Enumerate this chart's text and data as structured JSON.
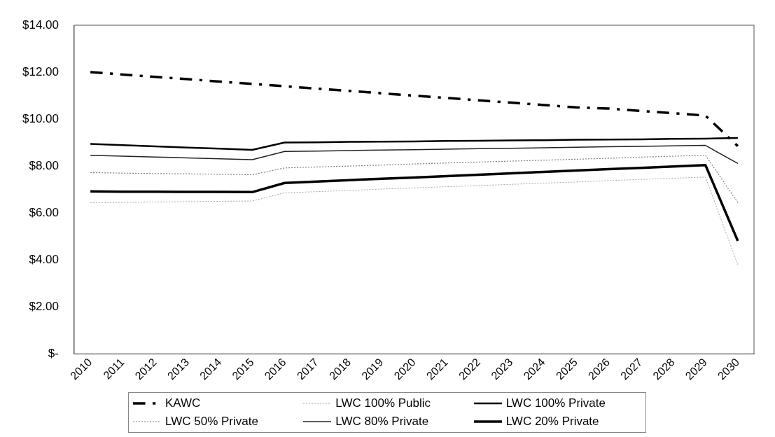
{
  "chart_data": {
    "type": "line",
    "categories": [
      "2010",
      "2011",
      "2012",
      "2013",
      "2014",
      "2015",
      "2016",
      "2017",
      "2018",
      "2019",
      "2020",
      "2021",
      "2022",
      "2023",
      "2024",
      "2025",
      "2026",
      "2027",
      "2028",
      "2029",
      "2030"
    ],
    "ylim": [
      0,
      14
    ],
    "yticks": [
      {
        "value": 0,
        "label": "$-"
      },
      {
        "value": 2,
        "label": "$2.00"
      },
      {
        "value": 4,
        "label": "$4.00"
      },
      {
        "value": 6,
        "label": "$6.00"
      },
      {
        "value": 8,
        "label": "$8.00"
      },
      {
        "value": 10,
        "label": "$10.00"
      },
      {
        "value": 12,
        "label": "$12.00"
      },
      {
        "value": 14,
        "label": "$14.00"
      }
    ],
    "grid": false,
    "legend": "bottom",
    "marker": "none",
    "series": [
      {
        "name": "KAWC",
        "color": "#000000",
        "line_style": "dashed",
        "values": [
          12.0,
          11.9,
          11.8,
          11.7,
          11.6,
          11.5,
          11.4,
          11.3,
          11.2,
          11.1,
          11.0,
          10.9,
          10.8,
          10.7,
          10.6,
          10.5,
          10.45,
          10.35,
          10.25,
          10.15,
          8.85
        ]
      },
      {
        "name": "LWC 100% Public",
        "color": "#a6a6a6",
        "line_style": "dotted",
        "values": [
          6.44,
          6.45,
          6.47,
          6.48,
          6.5,
          6.51,
          6.86,
          6.91,
          6.96,
          7.02,
          7.07,
          7.12,
          7.17,
          7.22,
          7.27,
          7.32,
          7.38,
          7.43,
          7.48,
          7.53,
          3.8
        ]
      },
      {
        "name": "LWC 100% Private",
        "color": "#000000",
        "line_style": "solid",
        "values": [
          8.94,
          8.89,
          8.84,
          8.79,
          8.74,
          8.69,
          9.0,
          9.01,
          9.03,
          9.04,
          9.05,
          9.07,
          9.08,
          9.09,
          9.1,
          9.12,
          9.13,
          9.14,
          9.16,
          9.17,
          9.2
        ]
      },
      {
        "name": "LWC 50% Private",
        "color": "#808080",
        "line_style": "dotted",
        "values": [
          7.72,
          7.7,
          7.68,
          7.67,
          7.65,
          7.63,
          7.92,
          7.96,
          8.0,
          8.04,
          8.09,
          8.13,
          8.17,
          8.21,
          8.25,
          8.29,
          8.33,
          8.38,
          8.42,
          8.46,
          6.44
        ]
      },
      {
        "name": "LWC 80% Private",
        "color": "#222222",
        "line_style": "solid",
        "values": [
          8.46,
          8.42,
          8.38,
          8.35,
          8.31,
          8.27,
          8.62,
          8.64,
          8.66,
          8.68,
          8.7,
          8.72,
          8.74,
          8.76,
          8.78,
          8.8,
          8.82,
          8.84,
          8.86,
          8.88,
          8.11
        ]
      },
      {
        "name": "LWC 20% Private",
        "color": "#000000",
        "line_style": "solid",
        "values": [
          6.92,
          6.91,
          6.91,
          6.9,
          6.9,
          6.89,
          7.28,
          7.34,
          7.4,
          7.46,
          7.51,
          7.57,
          7.63,
          7.69,
          7.75,
          7.81,
          7.87,
          7.92,
          7.98,
          8.04,
          4.81
        ]
      }
    ]
  }
}
